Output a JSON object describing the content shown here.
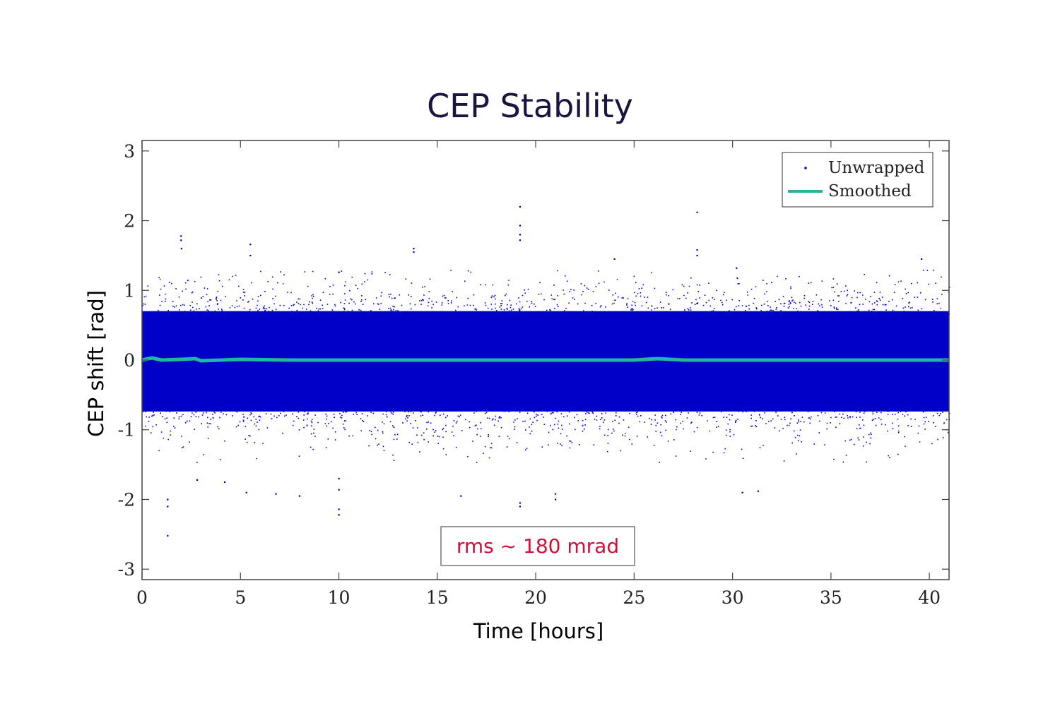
{
  "chart_data": {
    "type": "scatter",
    "title": "CEP Stability",
    "xlabel": "Time [hours]",
    "ylabel": "CEP shift [rad]",
    "xlim": [
      0,
      41
    ],
    "ylim": [
      -3.15,
      3.15
    ],
    "xticks": [
      "0",
      "5",
      "10",
      "15",
      "20",
      "25",
      "30",
      "35",
      "40"
    ],
    "yticks": [
      "3",
      "2",
      "1",
      "0",
      "-1",
      "-2",
      "-3"
    ],
    "legend": {
      "position": "top-right",
      "entries": [
        "Unwrapped",
        "Smoothed"
      ]
    },
    "annotation": "rms ~ 180 mrad",
    "grid": false,
    "colors": {
      "unwrapped": "#0000c8",
      "smoothed": "#1fb8a0"
    },
    "series": [
      {
        "name": "Unwrapped",
        "kind": "scatter",
        "noise_rms": 0.18,
        "core_band": [
          -0.9,
          0.9
        ],
        "outliers": [
          [
            1.98,
            1.78
          ],
          [
            1.98,
            1.72
          ],
          [
            2.0,
            1.6
          ],
          [
            5.5,
            1.66
          ],
          [
            5.5,
            1.5
          ],
          [
            13.8,
            1.6
          ],
          [
            13.8,
            1.55
          ],
          [
            10.0,
            1.26
          ],
          [
            19.2,
            2.2
          ],
          [
            19.2,
            1.93
          ],
          [
            19.2,
            1.8
          ],
          [
            19.2,
            1.72
          ],
          [
            28.2,
            2.12
          ],
          [
            28.2,
            1.58
          ],
          [
            28.2,
            1.5
          ],
          [
            39.6,
            1.45
          ],
          [
            24.0,
            1.45
          ],
          [
            30.2,
            1.32
          ],
          [
            1.3,
            -2.0
          ],
          [
            1.3,
            -2.1
          ],
          [
            1.3,
            -2.52
          ],
          [
            10.0,
            -2.14
          ],
          [
            10.0,
            -2.22
          ],
          [
            10.0,
            -1.86
          ],
          [
            10.0,
            -1.7
          ],
          [
            19.2,
            -2.05
          ],
          [
            19.2,
            -2.1
          ],
          [
            21.0,
            -1.92
          ],
          [
            21.0,
            -2.0
          ],
          [
            16.2,
            -1.95
          ],
          [
            30.5,
            -1.9
          ],
          [
            31.3,
            -1.88
          ],
          [
            6.8,
            -1.92
          ],
          [
            4.2,
            -1.75
          ],
          [
            5.3,
            -1.9
          ],
          [
            2.8,
            -1.72
          ],
          [
            8.0,
            -1.95
          ]
        ]
      },
      {
        "name": "Smoothed",
        "kind": "line",
        "x": [
          0,
          0.5,
          1,
          2,
          2.7,
          3,
          5,
          7.5,
          10,
          12.5,
          15,
          17.5,
          20,
          22.5,
          25,
          26.2,
          27.5,
          30,
          32.5,
          35,
          37.5,
          40,
          41
        ],
        "values": [
          0.0,
          0.03,
          0.0,
          0.01,
          0.02,
          -0.01,
          0.01,
          0.0,
          0.0,
          0.0,
          0.0,
          0.0,
          0.0,
          0.0,
          0.0,
          0.02,
          0.0,
          0.0,
          0.0,
          0.0,
          0.0,
          0.0,
          0.0
        ]
      }
    ]
  }
}
